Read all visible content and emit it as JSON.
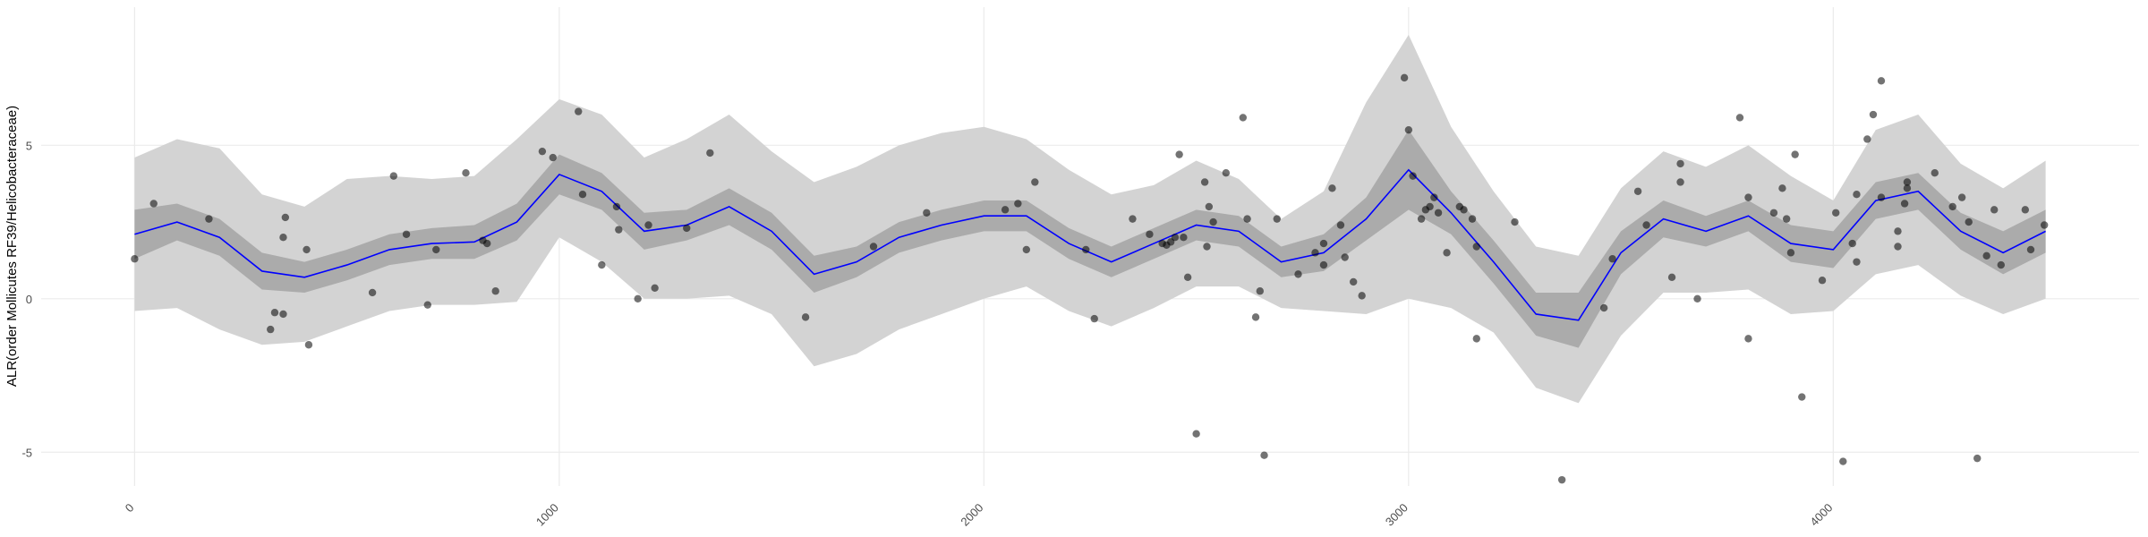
{
  "chart_data": {
    "type": "scatter",
    "y_label": "ALR(order Mollicutes RF39/Helicobacteraceae)",
    "xlim": [
      -220,
      4720
    ],
    "ylim": [
      -6.1,
      9.5
    ],
    "xticks": [
      0,
      1000,
      2000,
      3000,
      4000
    ],
    "yticks": [
      -5,
      0,
      5
    ],
    "grid": true,
    "points": {
      "color": "#000000",
      "x": [
        0,
        45,
        175,
        320,
        330,
        350,
        350,
        355,
        405,
        410,
        560,
        610,
        640,
        690,
        710,
        780,
        820,
        830,
        850,
        960,
        985,
        1045,
        1055,
        1100,
        1135,
        1140,
        1185,
        1210,
        1225,
        1300,
        1355,
        1580,
        1740,
        1865,
        2050,
        2080,
        2100,
        2120,
        2240,
        2260,
        2350,
        2390,
        2420,
        2430,
        2440,
        2450,
        2460,
        2470,
        2480,
        2500,
        2520,
        2525,
        2530,
        2540,
        2570,
        2610,
        2620,
        2640,
        2650,
        2660,
        2690,
        2740,
        2780,
        2800,
        2800,
        2820,
        2840,
        2850,
        2870,
        2890,
        2990,
        3000,
        3010,
        3030,
        3040,
        3050,
        3060,
        3070,
        3090,
        3120,
        3130,
        3150,
        3160,
        3160,
        3250,
        3361,
        3460,
        3480,
        3540,
        3560,
        3620,
        3640,
        3640,
        3680,
        3780,
        3800,
        3800,
        3860,
        3880,
        3890,
        3900,
        3910,
        3926,
        3974,
        4006,
        4023,
        4045,
        4055,
        4055,
        4080,
        4094,
        4113,
        4113,
        4152,
        4152,
        4168,
        4174,
        4174,
        4239,
        4281,
        4303,
        4319,
        4339,
        4361,
        4379,
        4395,
        4452,
        4465,
        4497
      ],
      "values": [
        1.3,
        3.1,
        2.6,
        -1.0,
        -0.45,
        -0.5,
        2.0,
        2.65,
        1.6,
        -1.5,
        0.2,
        4.0,
        2.1,
        -0.2,
        1.6,
        4.1,
        1.9,
        1.8,
        0.25,
        4.8,
        4.6,
        6.1,
        3.4,
        1.1,
        3.0,
        2.25,
        0.0,
        2.4,
        0.35,
        2.3,
        4.75,
        -0.6,
        1.7,
        2.8,
        2.9,
        3.1,
        1.6,
        3.8,
        1.6,
        -0.65,
        2.6,
        2.1,
        1.8,
        1.75,
        1.85,
        2.0,
        4.7,
        2.0,
        0.7,
        -4.4,
        3.8,
        1.7,
        3.0,
        2.5,
        4.1,
        5.9,
        2.6,
        -0.6,
        0.25,
        -5.1,
        2.6,
        0.8,
        1.5,
        1.8,
        1.1,
        3.6,
        2.4,
        1.35,
        0.55,
        0.1,
        7.2,
        5.5,
        4.0,
        2.6,
        2.9,
        3.0,
        3.3,
        2.8,
        1.5,
        3.0,
        2.9,
        2.6,
        -1.3,
        1.7,
        2.5,
        -5.9,
        -0.3,
        1.3,
        3.5,
        2.4,
        0.7,
        4.4,
        3.8,
        0.0,
        5.9,
        -1.3,
        3.3,
        2.8,
        3.6,
        2.6,
        1.5,
        4.7,
        -3.2,
        0.6,
        2.8,
        -5.3,
        1.8,
        1.2,
        3.4,
        5.2,
        6.0,
        7.1,
        3.3,
        1.7,
        2.2,
        3.1,
        3.6,
        3.8,
        4.1,
        3.0,
        3.3,
        2.5,
        -5.2,
        1.4,
        2.9,
        1.1,
        2.9,
        1.6,
        2.4
      ]
    },
    "smooth": {
      "color": "#0000ff",
      "x": [
        0,
        100,
        200,
        300,
        400,
        500,
        600,
        700,
        800,
        900,
        1000,
        1100,
        1200,
        1300,
        1400,
        1500,
        1600,
        1700,
        1800,
        1900,
        2000,
        2100,
        2200,
        2300,
        2400,
        2500,
        2600,
        2700,
        2800,
        2900,
        3000,
        3100,
        3200,
        3300,
        3400,
        3500,
        3600,
        3700,
        3800,
        3900,
        4000,
        4100,
        4200,
        4300,
        4400,
        4500
      ],
      "values": [
        2.1,
        2.5,
        2.0,
        0.9,
        0.7,
        1.1,
        1.6,
        1.8,
        1.85,
        2.5,
        4.05,
        3.5,
        2.2,
        2.4,
        3.0,
        2.2,
        0.8,
        1.2,
        2.0,
        2.4,
        2.7,
        2.7,
        1.8,
        1.2,
        1.8,
        2.4,
        2.2,
        1.2,
        1.5,
        2.6,
        4.2,
        2.8,
        1.2,
        -0.5,
        -0.7,
        1.5,
        2.6,
        2.2,
        2.7,
        1.8,
        1.6,
        3.2,
        3.5,
        2.2,
        1.5,
        2.2
      ],
      "outer_color": "#d3d3d3",
      "outer_upper": [
        4.6,
        5.2,
        4.9,
        3.4,
        3.0,
        3.9,
        4.0,
        3.9,
        4.0,
        5.2,
        6.5,
        6.0,
        4.6,
        5.2,
        6.0,
        4.8,
        3.8,
        4.3,
        5.0,
        5.4,
        5.6,
        5.2,
        4.2,
        3.4,
        3.7,
        4.5,
        3.9,
        2.6,
        3.5,
        6.4,
        8.6,
        5.6,
        3.5,
        1.7,
        1.4,
        3.6,
        4.8,
        4.3,
        5.0,
        4.0,
        3.2,
        5.5,
        6.0,
        4.4,
        3.6,
        4.5
      ],
      "outer_lower": [
        -0.4,
        -0.3,
        -1.0,
        -1.5,
        -1.4,
        -0.9,
        -0.4,
        -0.2,
        -0.2,
        -0.1,
        2.0,
        1.2,
        0.0,
        0.0,
        0.1,
        -0.5,
        -2.2,
        -1.8,
        -1.0,
        -0.5,
        0.0,
        0.4,
        -0.4,
        -0.9,
        -0.3,
        0.4,
        0.4,
        -0.3,
        -0.4,
        -0.5,
        0.0,
        -0.3,
        -1.1,
        -2.9,
        -3.4,
        -1.2,
        0.2,
        0.2,
        0.3,
        -0.5,
        -0.4,
        0.8,
        1.1,
        0.1,
        -0.5,
        0.0
      ],
      "inner_color": "#ababab",
      "inner_upper": [
        2.9,
        3.1,
        2.6,
        1.5,
        1.2,
        1.6,
        2.1,
        2.3,
        2.4,
        3.1,
        4.7,
        4.1,
        2.8,
        2.9,
        3.6,
        2.8,
        1.4,
        1.7,
        2.5,
        2.9,
        3.2,
        3.2,
        2.3,
        1.7,
        2.3,
        2.9,
        2.7,
        1.7,
        2.1,
        3.3,
        5.5,
        3.5,
        1.9,
        0.2,
        0.2,
        2.2,
        3.2,
        2.7,
        3.2,
        2.4,
        2.2,
        3.8,
        4.1,
        2.8,
        2.2,
        2.9
      ],
      "inner_lower": [
        1.3,
        1.9,
        1.4,
        0.3,
        0.2,
        0.6,
        1.1,
        1.3,
        1.3,
        1.9,
        3.4,
        2.9,
        1.6,
        1.9,
        2.4,
        1.6,
        0.2,
        0.7,
        1.5,
        1.9,
        2.2,
        2.2,
        1.3,
        0.7,
        1.3,
        1.9,
        1.7,
        0.7,
        0.9,
        1.9,
        2.9,
        2.1,
        0.5,
        -1.2,
        -1.6,
        0.8,
        2.0,
        1.7,
        2.2,
        1.2,
        1.0,
        2.6,
        2.9,
        1.6,
        0.8,
        1.5
      ]
    }
  }
}
